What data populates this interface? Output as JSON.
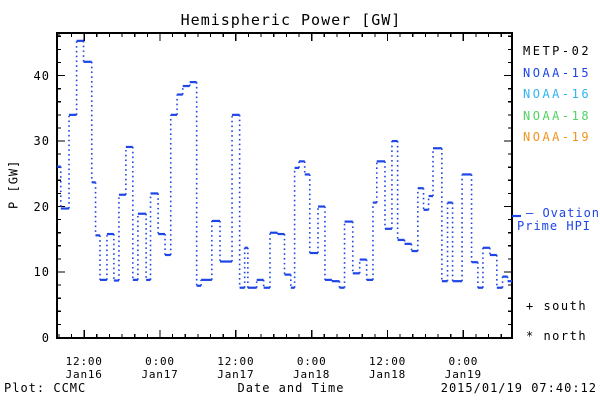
{
  "title": "Hemispheric Power [GW]",
  "colors": {
    "background": "#ffffff",
    "axis": "#000000",
    "hpi_line": "#1e46e6"
  },
  "y_axis": {
    "label": "P [GW]",
    "ticks": [
      0,
      10,
      20,
      30,
      40
    ],
    "minor_step": 2,
    "max": 46.5
  },
  "x_axis": {
    "minor_step_hours": 2,
    "ticks": [
      {
        "hour": 12,
        "time": "12:00",
        "date": "Jan16"
      },
      {
        "hour": 24,
        "time": "0:00",
        "date": "Jan17"
      },
      {
        "hour": 36,
        "time": "12:00",
        "date": "Jan17"
      },
      {
        "hour": 48,
        "time": "0:00",
        "date": "Jan18"
      },
      {
        "hour": 60,
        "time": "12:00",
        "date": "Jan18"
      },
      {
        "hour": 72,
        "time": "0:00",
        "date": "Jan19"
      }
    ]
  },
  "legend": {
    "satellites": [
      {
        "label": "METP-02",
        "color": "#000000"
      },
      {
        "label": "NOAA-15",
        "color": "#1e46e6"
      },
      {
        "label": "NOAA-16",
        "color": "#2fb4f0"
      },
      {
        "label": "NOAA-18",
        "color": "#4fd45f"
      },
      {
        "label": "NOAA-19",
        "color": "#f0941e"
      }
    ],
    "series_note_line1": "— Ovation",
    "series_note_line2": "Prime HPI",
    "south_label": "+ south",
    "north_label": "* north"
  },
  "footer": {
    "left": "Plot: CCMC",
    "xlabel": "Date and Time",
    "timestamp": "2015/01/19 07:40:12"
  },
  "chart_data": {
    "type": "line",
    "style": "step-dotted-risers",
    "title": "Hemispheric Power [GW]",
    "xlabel": "Date and Time",
    "ylabel": "P [GW]",
    "ylim": [
      0,
      46.5
    ],
    "x_hours_origin": "2015-01-16 00:00",
    "x_range_hours": [
      7.7,
      79.7
    ],
    "y_ticks": [
      0,
      10,
      20,
      30,
      40
    ],
    "legend_position": "right-outside",
    "grid": false,
    "series": [
      {
        "name": "Ovation Prime HPI",
        "unit": "GW",
        "color": "#1e46e6",
        "end_hour": 79.7,
        "steps_hour_value": [
          [
            7.7,
            26.1
          ],
          [
            8.3,
            19.7
          ],
          [
            9.6,
            34.0
          ],
          [
            10.8,
            45.3
          ],
          [
            11.9,
            42.1
          ],
          [
            13.2,
            23.7
          ],
          [
            13.8,
            15.6
          ],
          [
            14.5,
            8.8
          ],
          [
            15.6,
            15.8
          ],
          [
            16.7,
            8.7
          ],
          [
            17.5,
            21.8
          ],
          [
            18.6,
            29.1
          ],
          [
            19.7,
            8.8
          ],
          [
            20.5,
            18.9
          ],
          [
            21.8,
            8.8
          ],
          [
            22.5,
            22.0
          ],
          [
            23.7,
            15.8
          ],
          [
            24.8,
            12.6
          ],
          [
            25.7,
            34.0
          ],
          [
            26.7,
            37.1
          ],
          [
            27.6,
            38.4
          ],
          [
            28.7,
            39.0
          ],
          [
            29.8,
            7.9
          ],
          [
            30.5,
            8.8
          ],
          [
            32.2,
            17.8
          ],
          [
            33.5,
            11.6
          ],
          [
            35.4,
            34.0
          ],
          [
            36.6,
            7.6
          ],
          [
            37.4,
            13.7
          ],
          [
            37.9,
            7.6
          ],
          [
            39.3,
            8.8
          ],
          [
            40.4,
            7.6
          ],
          [
            41.4,
            16.0
          ],
          [
            42.6,
            15.8
          ],
          [
            43.7,
            9.6
          ],
          [
            44.7,
            7.6
          ],
          [
            45.3,
            25.9
          ],
          [
            46.0,
            26.9
          ],
          [
            46.9,
            24.9
          ],
          [
            47.7,
            12.9
          ],
          [
            49.0,
            20.0
          ],
          [
            50.1,
            8.8
          ],
          [
            51.2,
            8.6
          ],
          [
            52.4,
            7.6
          ],
          [
            53.2,
            17.7
          ],
          [
            54.5,
            9.8
          ],
          [
            55.6,
            11.9
          ],
          [
            56.7,
            8.8
          ],
          [
            57.7,
            20.6
          ],
          [
            58.3,
            26.9
          ],
          [
            59.6,
            16.6
          ],
          [
            60.7,
            30.0
          ],
          [
            61.6,
            14.9
          ],
          [
            62.7,
            14.3
          ],
          [
            63.8,
            13.2
          ],
          [
            64.8,
            22.8
          ],
          [
            65.7,
            19.5
          ],
          [
            66.5,
            21.6
          ],
          [
            67.2,
            28.9
          ],
          [
            68.6,
            8.6
          ],
          [
            69.5,
            20.6
          ],
          [
            70.3,
            8.6
          ],
          [
            71.8,
            24.9
          ],
          [
            73.3,
            11.5
          ],
          [
            74.3,
            7.6
          ],
          [
            75.1,
            13.7
          ],
          [
            76.2,
            12.6
          ],
          [
            77.3,
            7.6
          ],
          [
            78.2,
            9.3
          ],
          [
            79.0,
            8.6
          ]
        ]
      }
    ]
  }
}
